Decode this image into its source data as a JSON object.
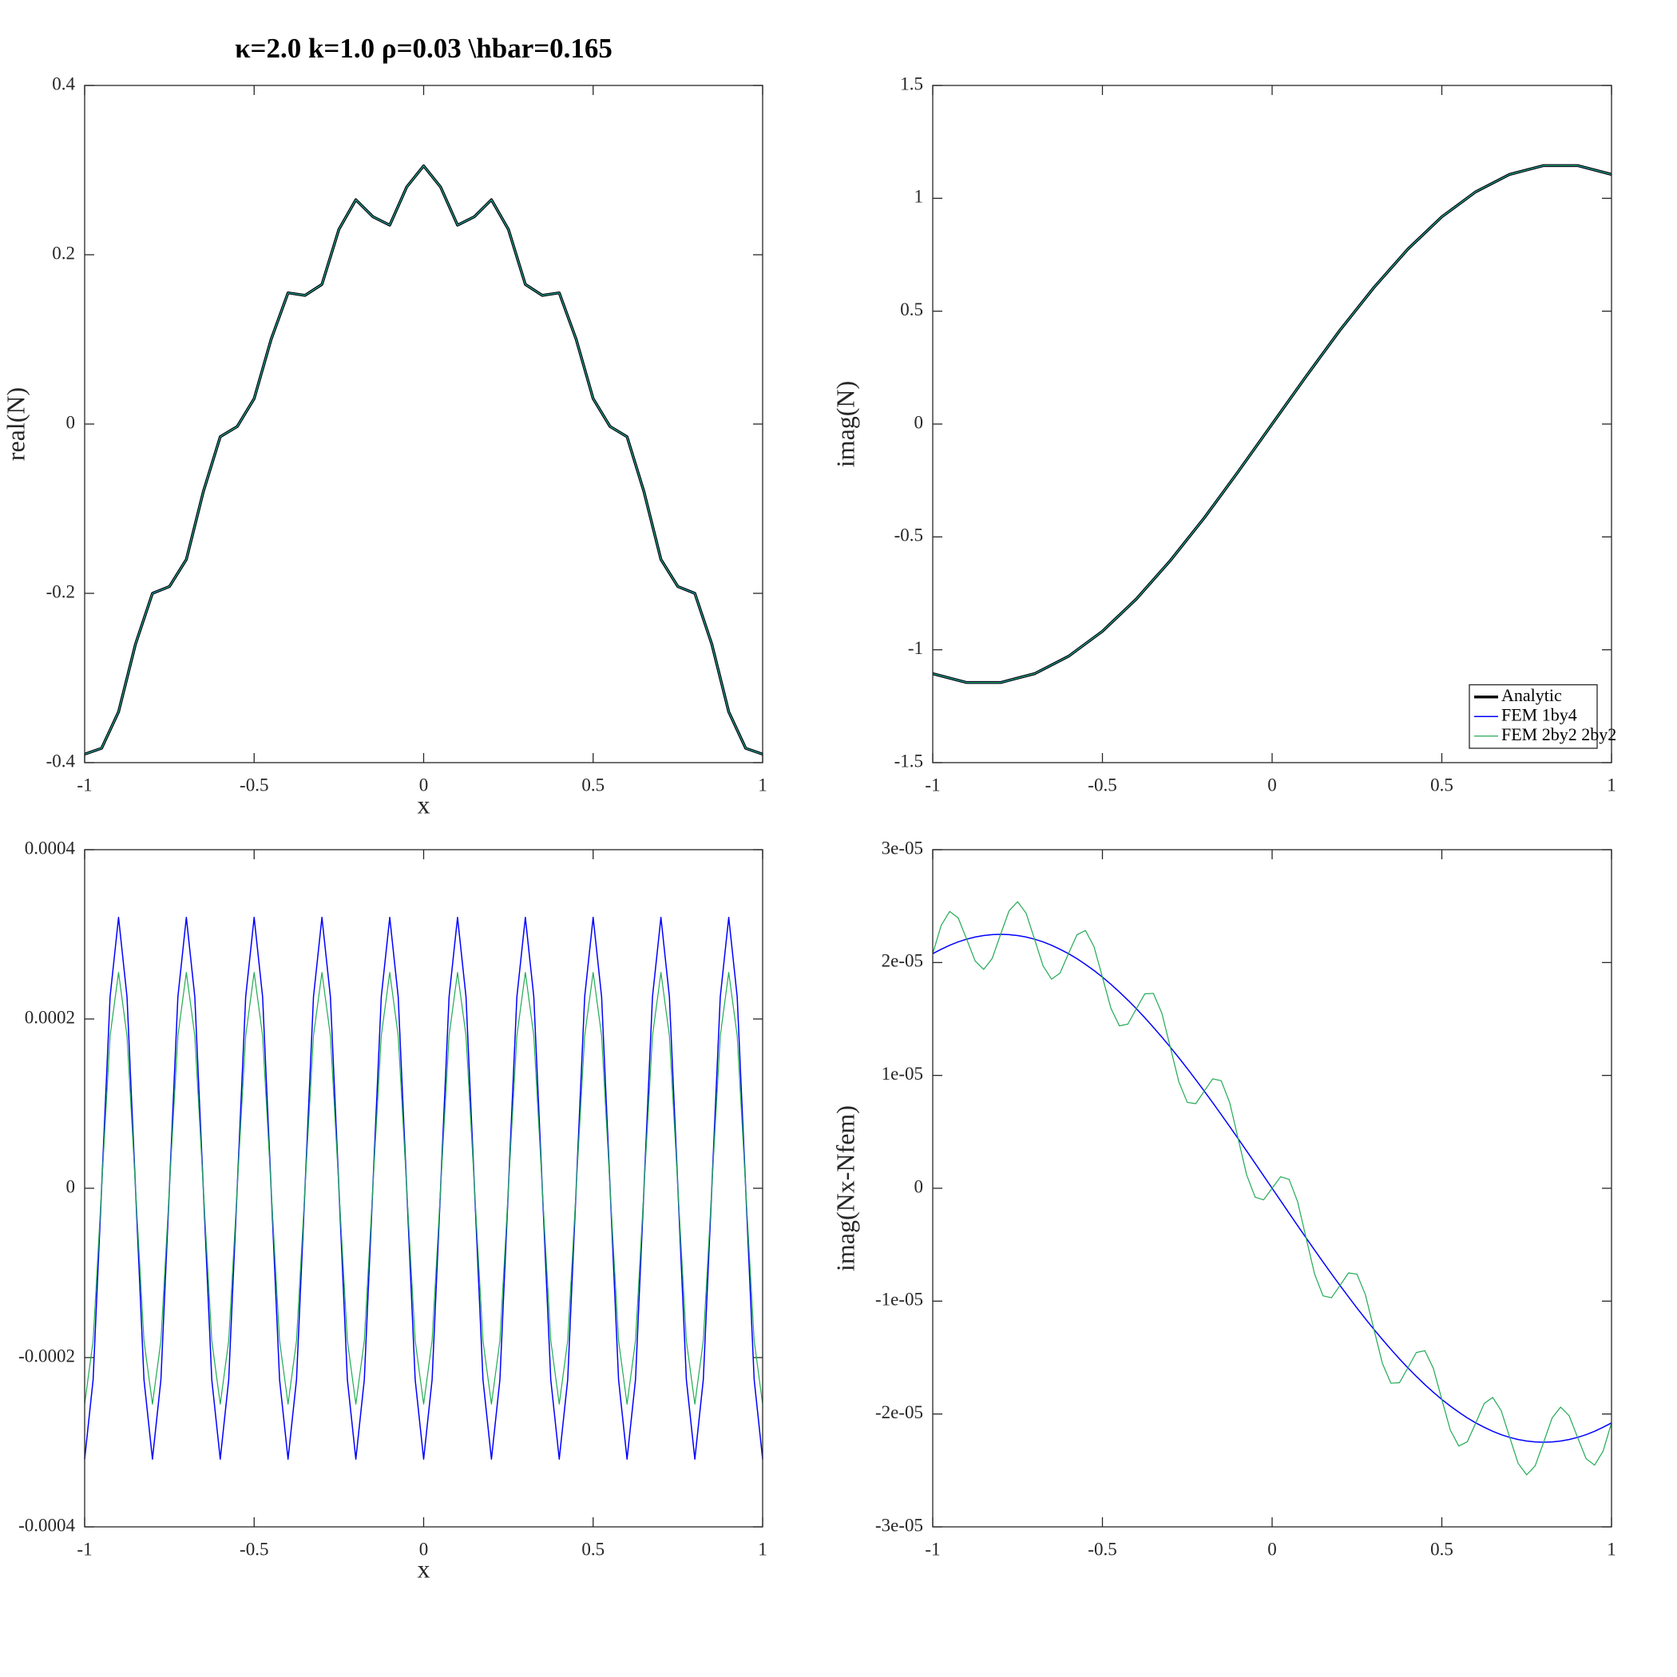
{
  "chart_data": [
    {
      "type": "line",
      "title": "κ=2.0   k=1.0   ρ=0.03   \\hbar=0.165",
      "xlabel": "x",
      "ylabel": "real(N)",
      "xlim": [
        -1,
        1
      ],
      "ylim": [
        -0.4,
        0.4
      ],
      "xticks": [
        -1,
        -0.5,
        0,
        0.5,
        1
      ],
      "yticks": [
        -0.4,
        -0.2,
        0,
        0.2,
        0.4
      ],
      "x": [
        -1,
        -0.95,
        -0.9,
        -0.85,
        -0.8,
        -0.75,
        -0.7,
        -0.65,
        -0.6,
        -0.55,
        -0.5,
        -0.45,
        -0.4,
        -0.35,
        -0.3,
        -0.25,
        -0.2,
        -0.15,
        -0.1,
        -0.05,
        0,
        0.05,
        0.1,
        0.15,
        0.2,
        0.25,
        0.3,
        0.35,
        0.4,
        0.45,
        0.5,
        0.55,
        0.6,
        0.65,
        0.7,
        0.75,
        0.8,
        0.85,
        0.9,
        0.95,
        1
      ],
      "series": [
        {
          "color": "#000000",
          "linewidth": 3.5,
          "values": [
            -0.39,
            -0.383,
            -0.34,
            -0.26,
            -0.2,
            -0.192,
            -0.16,
            -0.08,
            -0.015,
            -0.003,
            0.03,
            0.1,
            0.155,
            0.152,
            0.165,
            0.23,
            0.265,
            0.245,
            0.235,
            0.28,
            0.305,
            0.28,
            0.235,
            0.245,
            0.265,
            0.23,
            0.165,
            0.152,
            0.155,
            0.1,
            0.03,
            -0.003,
            -0.015,
            -0.08,
            -0.16,
            -0.192,
            -0.2,
            -0.26,
            -0.34,
            -0.383,
            -0.39
          ]
        },
        {
          "color": "#0000ff",
          "linewidth": 1.5,
          "values": [
            -0.39,
            -0.383,
            -0.34,
            -0.26,
            -0.2,
            -0.192,
            -0.16,
            -0.08,
            -0.015,
            -0.003,
            0.03,
            0.1,
            0.155,
            0.152,
            0.165,
            0.23,
            0.265,
            0.245,
            0.235,
            0.28,
            0.305,
            0.28,
            0.235,
            0.245,
            0.265,
            0.23,
            0.165,
            0.152,
            0.155,
            0.1,
            0.03,
            -0.003,
            -0.015,
            -0.08,
            -0.16,
            -0.192,
            -0.2,
            -0.26,
            -0.34,
            -0.383,
            -0.39
          ]
        },
        {
          "color": "#22aa55",
          "linewidth": 1.2,
          "values": [
            -0.39,
            -0.383,
            -0.34,
            -0.26,
            -0.2,
            -0.192,
            -0.16,
            -0.08,
            -0.015,
            -0.003,
            0.03,
            0.1,
            0.155,
            0.152,
            0.165,
            0.23,
            0.265,
            0.245,
            0.235,
            0.28,
            0.305,
            0.28,
            0.235,
            0.245,
            0.265,
            0.23,
            0.165,
            0.152,
            0.155,
            0.1,
            0.03,
            -0.003,
            -0.015,
            -0.08,
            -0.16,
            -0.192,
            -0.2,
            -0.26,
            -0.34,
            -0.383,
            -0.39
          ]
        }
      ]
    },
    {
      "type": "line",
      "ylabel": "imag(N)",
      "legend": "lower right",
      "xlim": [
        -1,
        1
      ],
      "ylim": [
        -1.5,
        1.5
      ],
      "xticks": [
        -1,
        -0.5,
        0,
        0.5,
        1
      ],
      "yticks": [
        -1.5,
        -1,
        -0.5,
        0,
        0.5,
        1,
        1.5
      ],
      "x": [
        -1,
        -0.9,
        -0.8,
        -0.7,
        -0.6,
        -0.5,
        -0.4,
        -0.3,
        -0.2,
        -0.1,
        0,
        0.1,
        0.2,
        0.3,
        0.4,
        0.5,
        0.6,
        0.7,
        0.8,
        0.9,
        1
      ],
      "series": [
        {
          "name": "Analytic",
          "color": "#000000",
          "linewidth": 3.5,
          "values": [
            -1.106,
            -1.145,
            -1.145,
            -1.106,
            -1.029,
            -0.918,
            -0.775,
            -0.605,
            -0.416,
            -0.211,
            0,
            0.211,
            0.416,
            0.605,
            0.775,
            0.918,
            1.029,
            1.106,
            1.145,
            1.145,
            1.106
          ]
        },
        {
          "name": "FEM 1by4",
          "color": "#0000ff",
          "linewidth": 1.5,
          "values": [
            -1.106,
            -1.145,
            -1.145,
            -1.106,
            -1.029,
            -0.918,
            -0.775,
            -0.605,
            -0.416,
            -0.211,
            0,
            0.211,
            0.416,
            0.605,
            0.775,
            0.918,
            1.029,
            1.106,
            1.145,
            1.145,
            1.106
          ]
        },
        {
          "name": "FEM 2by2 2by2",
          "color": "#22aa55",
          "linewidth": 1.2,
          "values": [
            -1.106,
            -1.145,
            -1.145,
            -1.106,
            -1.029,
            -0.918,
            -0.775,
            -0.605,
            -0.416,
            -0.211,
            0,
            0.211,
            0.416,
            0.605,
            0.775,
            0.918,
            1.029,
            1.106,
            1.145,
            1.145,
            1.106
          ]
        }
      ]
    },
    {
      "type": "line",
      "xlabel": "x",
      "xlim": [
        -1,
        1
      ],
      "ylim": [
        -0.0004,
        0.0004
      ],
      "xticks": [
        -1,
        -0.5,
        0,
        0.5,
        1
      ],
      "yticks": [
        -0.0004,
        -0.0002,
        0,
        0.0002,
        0.0004
      ],
      "x": [
        -1,
        -0.975,
        -0.95,
        -0.925,
        -0.9,
        -0.875,
        -0.85,
        -0.825,
        -0.8,
        -0.775,
        -0.75,
        -0.725,
        -0.7,
        -0.675,
        -0.65,
        -0.625,
        -0.6,
        -0.575,
        -0.55,
        -0.525,
        -0.5,
        -0.475,
        -0.45,
        -0.425,
        -0.4,
        -0.375,
        -0.35,
        -0.325,
        -0.3,
        -0.275,
        -0.25,
        -0.225,
        -0.2,
        -0.175,
        -0.15,
        -0.125,
        -0.1,
        -0.075,
        -0.05,
        -0.025,
        0,
        0.025,
        0.05,
        0.075,
        0.1,
        0.125,
        0.15,
        0.175,
        0.2,
        0.225,
        0.25,
        0.275,
        0.3,
        0.325,
        0.35,
        0.375,
        0.4,
        0.425,
        0.45,
        0.475,
        0.5,
        0.525,
        0.55,
        0.575,
        0.6,
        0.625,
        0.65,
        0.675,
        0.7,
        0.725,
        0.75,
        0.775,
        0.8,
        0.825,
        0.85,
        0.875,
        0.9,
        0.925,
        0.95,
        0.975,
        1
      ],
      "series": [
        {
          "color": "#0000ff",
          "linewidth": 1.5,
          "values": [
            -0.00032,
            -0.000226,
            0,
            0.000226,
            0.00032,
            0.000226,
            0,
            -0.000226,
            -0.00032,
            -0.000226,
            0,
            0.000226,
            0.00032,
            0.000226,
            0,
            -0.000226,
            -0.00032,
            -0.000226,
            0,
            0.000226,
            0.00032,
            0.000226,
            0,
            -0.000226,
            -0.00032,
            -0.000226,
            0,
            0.000226,
            0.00032,
            0.000226,
            0,
            -0.000226,
            -0.00032,
            -0.000226,
            0,
            0.000226,
            0.00032,
            0.000226,
            0,
            -0.000226,
            -0.00032,
            -0.000226,
            0,
            0.000226,
            0.00032,
            0.000226,
            0,
            -0.000226,
            -0.00032,
            -0.000226,
            0,
            0.000226,
            0.00032,
            0.000226,
            0,
            -0.000226,
            -0.00032,
            -0.000226,
            0,
            0.000226,
            0.00032,
            0.000226,
            0,
            -0.000226,
            -0.00032,
            -0.000226,
            0,
            0.000226,
            0.00032,
            0.000226,
            0,
            -0.000226,
            -0.00032,
            -0.000226,
            0,
            0.000226,
            0.00032,
            0.000226,
            0,
            -0.000226,
            -0.00032
          ]
        },
        {
          "color": "#22aa55",
          "linewidth": 1.2,
          "values": [
            -0.000255,
            -0.00018,
            0,
            0.00018,
            0.000255,
            0.00018,
            0,
            -0.00018,
            -0.000255,
            -0.00018,
            0,
            0.00018,
            0.000255,
            0.00018,
            0,
            -0.00018,
            -0.000255,
            -0.00018,
            0,
            0.00018,
            0.000255,
            0.00018,
            0,
            -0.00018,
            -0.000255,
            -0.00018,
            0,
            0.00018,
            0.000255,
            0.00018,
            0,
            -0.00018,
            -0.000255,
            -0.00018,
            0,
            0.00018,
            0.000255,
            0.00018,
            0,
            -0.00018,
            -0.000255,
            -0.00018,
            0,
            0.00018,
            0.000255,
            0.00018,
            0,
            -0.00018,
            -0.000255,
            -0.00018,
            0,
            0.00018,
            0.000255,
            0.00018,
            0,
            -0.00018,
            -0.000255,
            -0.00018,
            0,
            0.00018,
            0.000255,
            0.00018,
            0,
            -0.00018,
            -0.000255,
            -0.00018,
            0,
            0.00018,
            0.000255,
            0.00018,
            0,
            -0.00018,
            -0.000255,
            -0.00018,
            0,
            0.00018,
            0.000255,
            0.00018,
            0,
            -0.00018,
            -0.000255
          ]
        }
      ]
    },
    {
      "type": "line",
      "ylabel": "imag(Nx-Nfem)",
      "xlim": [
        -1,
        1
      ],
      "ylim": [
        -3e-05,
        3e-05
      ],
      "xticks": [
        -1,
        -0.5,
        0,
        0.5,
        1
      ],
      "yticks": [
        {
          "value": -3e-05,
          "label": "-3e-05"
        },
        {
          "value": -2e-05,
          "label": "-2e-05"
        },
        {
          "value": -1e-05,
          "label": "-1e-05"
        },
        0,
        {
          "value": 1e-05,
          "label": "1e-05"
        },
        {
          "value": 2e-05,
          "label": "2e-05"
        },
        {
          "value": 3e-05,
          "label": "3e-05"
        }
      ],
      "x": [
        -1,
        -0.975,
        -0.95,
        -0.925,
        -0.9,
        -0.875,
        -0.85,
        -0.825,
        -0.8,
        -0.775,
        -0.75,
        -0.725,
        -0.7,
        -0.675,
        -0.65,
        -0.625,
        -0.6,
        -0.575,
        -0.55,
        -0.525,
        -0.5,
        -0.475,
        -0.45,
        -0.425,
        -0.4,
        -0.375,
        -0.35,
        -0.325,
        -0.3,
        -0.275,
        -0.25,
        -0.225,
        -0.2,
        -0.175,
        -0.15,
        -0.125,
        -0.1,
        -0.075,
        -0.05,
        -0.025,
        0,
        0.025,
        0.05,
        0.075,
        0.1,
        0.125,
        0.15,
        0.175,
        0.2,
        0.225,
        0.25,
        0.275,
        0.3,
        0.325,
        0.35,
        0.375,
        0.4,
        0.425,
        0.45,
        0.475,
        0.5,
        0.525,
        0.55,
        0.575,
        0.6,
        0.625,
        0.65,
        0.675,
        0.7,
        0.725,
        0.75,
        0.775,
        0.8,
        0.825,
        0.85,
        0.875,
        0.9,
        0.925,
        0.95,
        0.975,
        1
      ],
      "series": [
        {
          "color": "#0000ff",
          "linewidth": 1.5,
          "values": [
            2.079e-05,
            2.118e-05,
            2.153e-05,
            2.183e-05,
            2.207e-05,
            2.226e-05,
            2.239e-05,
            2.247e-05,
            2.25e-05,
            2.247e-05,
            2.239e-05,
            2.226e-05,
            2.207e-05,
            2.183e-05,
            2.153e-05,
            2.118e-05,
            2.079e-05,
            2.034e-05,
            1.984e-05,
            1.93e-05,
            1.871e-05,
            1.807e-05,
            1.739e-05,
            1.667e-05,
            1.591e-05,
            1.511e-05,
            1.427e-05,
            1.34e-05,
            1.25e-05,
            1.157e-05,
            1.061e-05,
            9.62e-06,
            8.61e-06,
            7.58e-06,
            6.53e-06,
            5.47e-06,
            4.39e-06,
            3.3e-06,
            2.21e-06,
            1.1e-06,
            0,
            -1.1e-06,
            -2.21e-06,
            -3.3e-06,
            -4.39e-06,
            -5.47e-06,
            -6.53e-06,
            -7.58e-06,
            -8.61e-06,
            -9.62e-06,
            -1.061e-05,
            -1.157e-05,
            -1.25e-05,
            -1.34e-05,
            -1.427e-05,
            -1.511e-05,
            -1.591e-05,
            -1.667e-05,
            -1.739e-05,
            -1.807e-05,
            -1.871e-05,
            -1.93e-05,
            -1.984e-05,
            -2.034e-05,
            -2.079e-05,
            -2.118e-05,
            -2.153e-05,
            -2.183e-05,
            -2.207e-05,
            -2.226e-05,
            -2.239e-05,
            -2.247e-05,
            -2.25e-05,
            -2.247e-05,
            -2.239e-05,
            -2.226e-05,
            -2.207e-05,
            -2.183e-05,
            -2.153e-05,
            -2.118e-05,
            -2.079e-05
          ]
        },
        {
          "color": "#22aa55",
          "linewidth": 1.2,
          "values": [
            2.079e-05,
            2.33e-05,
            2.453e-05,
            2.395e-05,
            2.207e-05,
            2.014e-05,
            1.939e-05,
            2.035e-05,
            2.25e-05,
            2.459e-05,
            2.539e-05,
            2.438e-05,
            2.207e-05,
            1.971e-05,
            1.853e-05,
            1.906e-05,
            2.079e-05,
            2.246e-05,
            2.284e-05,
            2.142e-05,
            1.871e-05,
            1.595e-05,
            1.439e-05,
            1.455e-05,
            1.591e-05,
            1.723e-05,
            1.727e-05,
            1.552e-05,
            1.25e-05,
            9.45e-06,
            7.61e-06,
            7.5e-06,
            8.61e-06,
            9.7e-06,
            9.53e-06,
            7.59e-06,
            4.39e-06,
            1.18e-06,
            -7.9e-07,
            -1.02e-06,
            0,
            1.02e-06,
            7.9e-07,
            -1.18e-06,
            -4.39e-06,
            -7.59e-06,
            -9.53e-06,
            -9.7e-06,
            -8.61e-06,
            -7.5e-06,
            -7.61e-06,
            -9.45e-06,
            -1.25e-05,
            -1.552e-05,
            -1.727e-05,
            -1.723e-05,
            -1.591e-05,
            -1.455e-05,
            -1.439e-05,
            -1.595e-05,
            -1.871e-05,
            -2.142e-05,
            -2.284e-05,
            -2.246e-05,
            -2.079e-05,
            -1.906e-05,
            -1.853e-05,
            -1.971e-05,
            -2.207e-05,
            -2.438e-05,
            -2.539e-05,
            -2.459e-05,
            -2.25e-05,
            -2.035e-05,
            -1.939e-05,
            -2.014e-05,
            -2.207e-05,
            -2.395e-05,
            -2.453e-05,
            -2.33e-05,
            -2.079e-05
          ]
        }
      ]
    }
  ]
}
